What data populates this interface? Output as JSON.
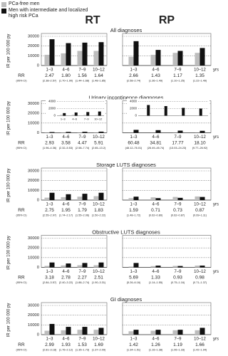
{
  "chart_data": [
    {
      "type": "bar",
      "group": "RT",
      "title": "All diagnoses",
      "ylabel": "IR per 100 000 py",
      "rr_label": "RR",
      "ci_label": "(95% CI)",
      "show_ytick_labels": true,
      "categories": [
        "1–3",
        "4–6",
        "7–9",
        "10–12"
      ],
      "series": [
        {
          "name": "PCa-free men",
          "color": "#bdbdbd",
          "values": [
            11000,
            12500,
            15000,
            15000
          ]
        },
        {
          "name": "Men with intermediate and localized high risk PCa",
          "color": "#111111",
          "values": [
            27000,
            23000,
            23500,
            24000
          ]
        }
      ],
      "ylim": [
        0,
        30000
      ],
      "yticks": [
        0,
        10000,
        20000,
        30000
      ],
      "grid": true,
      "rr": {
        "values": [
          2.47,
          1.8,
          1.56,
          1.64
        ],
        "value_labels": [
          "2.47",
          "1.80",
          "1.56",
          "1.64"
        ],
        "ci_labels": [
          "(2.38–2.57)",
          "(1.70–1.90)",
          "(1.44–1.68)",
          "(1.48–1.85)"
        ]
      }
    },
    {
      "type": "bar",
      "group": "RP",
      "x_unit": "yrs",
      "show_ytick_labels": false,
      "categories": [
        "1–3",
        "4–6",
        "7–9",
        "10–12"
      ],
      "series": [
        {
          "name": "PCa-free men",
          "color": "#bdbdbd",
          "values": [
            9000,
            11000,
            13000,
            13000
          ]
        },
        {
          "name": "Men with intermediate and localized high risk PCa",
          "color": "#111111",
          "values": [
            25000,
            16000,
            15000,
            18000
          ]
        }
      ],
      "ylim": [
        0,
        30000
      ],
      "yticks": [
        0,
        10000,
        20000,
        30000
      ],
      "grid": true,
      "rr": {
        "values": [
          2.66,
          1.43,
          1.17,
          1.35
        ],
        "value_labels": [
          "2.66",
          "1.43",
          "1.17",
          "1.35"
        ],
        "ci_labels": [
          "(2.58–2.74)",
          "(1.36–1.49)",
          "(1.10–1.25)",
          "(1.22–1.49)"
        ]
      }
    },
    {
      "type": "bar",
      "group": "RT",
      "title": "Urinary incontinence diagnoses",
      "ylabel": "IR per 100 000 py",
      "rr_label": "RR",
      "ci_label": "(95% CI)",
      "show_ytick_labels": true,
      "categories": [
        "1–3",
        "4–6",
        "7–9",
        "10–12"
      ],
      "series": [
        {
          "name": "PCa-free men",
          "color": "#bdbdbd",
          "values": [
            250,
            250,
            230,
            200
          ]
        },
        {
          "name": "Men with intermediate and localized high risk PCa",
          "color": "#111111",
          "values": [
            730,
            900,
            1030,
            1180
          ]
        }
      ],
      "ylim": [
        0,
        30000
      ],
      "yticks": [
        0,
        10000,
        20000,
        30000
      ],
      "grid": true,
      "inset": {
        "ylim": [
          0,
          4000
        ],
        "yticks": [
          0,
          2000,
          4000
        ],
        "categories": [
          "1–3",
          "4–6",
          "7–9",
          "10–12"
        ]
      },
      "rr": {
        "values": [
          2.93,
          3.58,
          4.47,
          5.91
        ],
        "value_labels": [
          "2.93",
          "3.58",
          "4.47",
          "5.91"
        ],
        "ci_labels": [
          "(1.96–4.36)",
          "(2.32–5.53)",
          "(2.58–7.74)",
          "(2.65–13.2)"
        ]
      }
    },
    {
      "type": "bar",
      "group": "RP",
      "x_unit": "yrs",
      "show_ytick_labels": false,
      "categories": [
        "1–3",
        "4–6",
        "7–9",
        "10–12"
      ],
      "series": [
        {
          "name": "PCa-free men",
          "color": "#bdbdbd",
          "values": [
            50,
            80,
            120,
            110
          ]
        },
        {
          "name": "Men with intermediate and localized high risk PCa",
          "color": "#111111",
          "values": [
            3000,
            2700,
            2200,
            2000
          ]
        }
      ],
      "ylim": [
        0,
        30000
      ],
      "yticks": [
        0,
        10000,
        20000,
        30000
      ],
      "grid": true,
      "inset": {
        "ylim": [
          0,
          4000
        ],
        "yticks": [
          0,
          2000,
          4000
        ]
      },
      "rr": {
        "values": [
          60.48,
          34.81,
          17.77,
          18.1
        ],
        "value_labels": [
          "60.48",
          "34.81",
          "17.77",
          "18.10"
        ],
        "ci_labels": [
          "(48.12–76.01)",
          "(26.49–45.74)",
          "(13.03–24.23)",
          "(9.77–26.92)"
        ]
      }
    },
    {
      "type": "bar",
      "group": "RT",
      "title": "Storage LUTS diagnoses",
      "ylabel": "IR per 100 000 py",
      "rr_label": "RR",
      "ci_label": "(95% CI)",
      "show_ytick_labels": true,
      "categories": [
        "1–3",
        "4–6",
        "7–9",
        "10–12"
      ],
      "series": [
        {
          "name": "PCa-free men",
          "color": "#bdbdbd",
          "values": [
            2500,
            3000,
            3500,
            4000
          ]
        },
        {
          "name": "Men with intermediate and localized high risk PCa",
          "color": "#111111",
          "values": [
            7500,
            6000,
            6500,
            7500
          ]
        }
      ],
      "ylim": [
        0,
        30000
      ],
      "yticks": [
        0,
        10000,
        20000,
        30000
      ],
      "grid": true,
      "rr": {
        "values": [
          2.75,
          1.95,
          1.79,
          1.83
        ],
        "value_labels": [
          "2.75",
          "1.95",
          "1.79",
          "1.83"
        ],
        "ci_labels": [
          "(2.55–2.97)",
          "(1.74–2.17)",
          "(1.55–2.06)",
          "(1.50–2.22)"
        ]
      }
    },
    {
      "type": "bar",
      "group": "RP",
      "x_unit": "yrs",
      "show_ytick_labels": false,
      "categories": [
        "1–3",
        "4–6",
        "7–9",
        "10–12"
      ],
      "series": [
        {
          "name": "PCa-free men",
          "color": "#bdbdbd",
          "values": [
            2000,
            2800,
            3200,
            3700
          ]
        },
        {
          "name": "Men with intermediate and localized high risk PCa",
          "color": "#111111",
          "values": [
            3500,
            2000,
            2300,
            3200
          ]
        }
      ],
      "ylim": [
        0,
        30000
      ],
      "yticks": [
        0,
        10000,
        20000,
        30000
      ],
      "grid": true,
      "rr": {
        "values": [
          1.59,
          0.71,
          0.73,
          0.87
        ],
        "value_labels": [
          "1.59",
          "0.71",
          "0.73",
          "0.87"
        ],
        "ci_labels": [
          "(1.48–1.72)",
          "(0.62–0.80)",
          "(0.62–0.87)",
          "(0.69–1.11)"
        ]
      }
    },
    {
      "type": "bar",
      "group": "RT",
      "title": "Obstructive LUTS diagnoses",
      "ylabel": "IR per 100 000 py",
      "rr_label": "RR",
      "ci_label": "(95% CI)",
      "show_ytick_labels": true,
      "categories": [
        "1–3",
        "4–6",
        "7–9",
        "10–12"
      ],
      "series": [
        {
          "name": "PCa-free men",
          "color": "#bdbdbd",
          "values": [
            1500,
            2000,
            2200,
            2200
          ]
        },
        {
          "name": "Men with intermediate and localized high risk PCa",
          "color": "#111111",
          "values": [
            5000,
            4000,
            4500,
            5000
          ]
        }
      ],
      "ylim": [
        0,
        30000
      ],
      "yticks": [
        0,
        10000,
        20000,
        30000
      ],
      "grid": true,
      "rr": {
        "values": [
          3.18,
          2.78,
          2.27,
          2.51
        ],
        "value_labels": [
          "3.18",
          "2.78",
          "2.27",
          "2.51"
        ],
        "ci_labels": [
          "(2.84–3.57)",
          "(2.40–3.22)",
          "(1.88–2.74)",
          "(1.90–3.31)"
        ]
      }
    },
    {
      "type": "bar",
      "group": "RP",
      "x_unit": "yrs",
      "show_ytick_labels": false,
      "categories": [
        "1–3",
        "4–6",
        "7–9",
        "10–12"
      ],
      "series": [
        {
          "name": "PCa-free men",
          "color": "#bdbdbd",
          "values": [
            800,
            1300,
            1500,
            1800
          ]
        },
        {
          "name": "Men with intermediate and localized high risk PCa",
          "color": "#111111",
          "values": [
            4500,
            1800,
            1400,
            1800
          ]
        }
      ],
      "ylim": [
        0,
        30000
      ],
      "yticks": [
        0,
        10000,
        20000,
        30000
      ],
      "grid": true,
      "rr": {
        "values": [
          5.69,
          1.33,
          0.93,
          0.98
        ],
        "value_labels": [
          "5.69",
          "1.33",
          "0.93",
          "0.98"
        ],
        "ci_labels": [
          "(5.26–6.16)",
          "(1.14–1.55)",
          "(0.75–1.16)",
          "(0.71–1.37)"
        ]
      }
    },
    {
      "type": "bar",
      "group": "RT",
      "title": "GI diagnoses",
      "ylabel": "IR per 100 000 py",
      "rr_label": "RR",
      "ci_label": "(95% CI)",
      "show_ytick_labels": true,
      "categories": [
        "1–3",
        "4–6",
        "7–9",
        "10–12"
      ],
      "series": [
        {
          "name": "PCa-free men",
          "color": "#bdbdbd",
          "values": [
            4000,
            4500,
            5000,
            5000
          ]
        },
        {
          "name": "Men with intermediate and localized high risk PCa",
          "color": "#111111",
          "values": [
            11000,
            8000,
            8000,
            7000
          ]
        }
      ],
      "ylim": [
        0,
        30000
      ],
      "yticks": [
        0,
        10000,
        20000,
        30000
      ],
      "grid": true,
      "rr": {
        "values": [
          2.99,
          1.93,
          1.53,
          1.69
        ],
        "value_labels": [
          "2.99",
          "1.93",
          "1.53",
          "1.69"
        ],
        "ci_labels": [
          "(2.81–3.18)",
          "(1.76–2.12)",
          "(1.35–1.73)",
          "(1.37–2.09)"
        ]
      }
    },
    {
      "type": "bar",
      "group": "RP",
      "x_unit": "yrs",
      "show_ytick_labels": false,
      "categories": [
        "1–3",
        "4–6",
        "7–9",
        "10–12"
      ],
      "series": [
        {
          "name": "PCa-free men",
          "color": "#bdbdbd",
          "values": [
            3500,
            4000,
            4500,
            4500
          ]
        },
        {
          "name": "Men with intermediate and localized high risk PCa",
          "color": "#111111",
          "values": [
            5000,
            5000,
            5000,
            7000
          ]
        }
      ],
      "ylim": [
        0,
        30000
      ],
      "yticks": [
        0,
        10000,
        20000,
        30000
      ],
      "grid": true,
      "rr": {
        "values": [
          1.42,
          1.26,
          1.19,
          1.66
        ],
        "value_labels": [
          "1.42",
          "1.26",
          "1.19",
          "1.66"
        ],
        "ci_labels": [
          "(1.34–1.51)",
          "(1.16–1.38)",
          "(1.06–1.33)",
          "(1.42–1.94)"
        ]
      }
    }
  ]
}
